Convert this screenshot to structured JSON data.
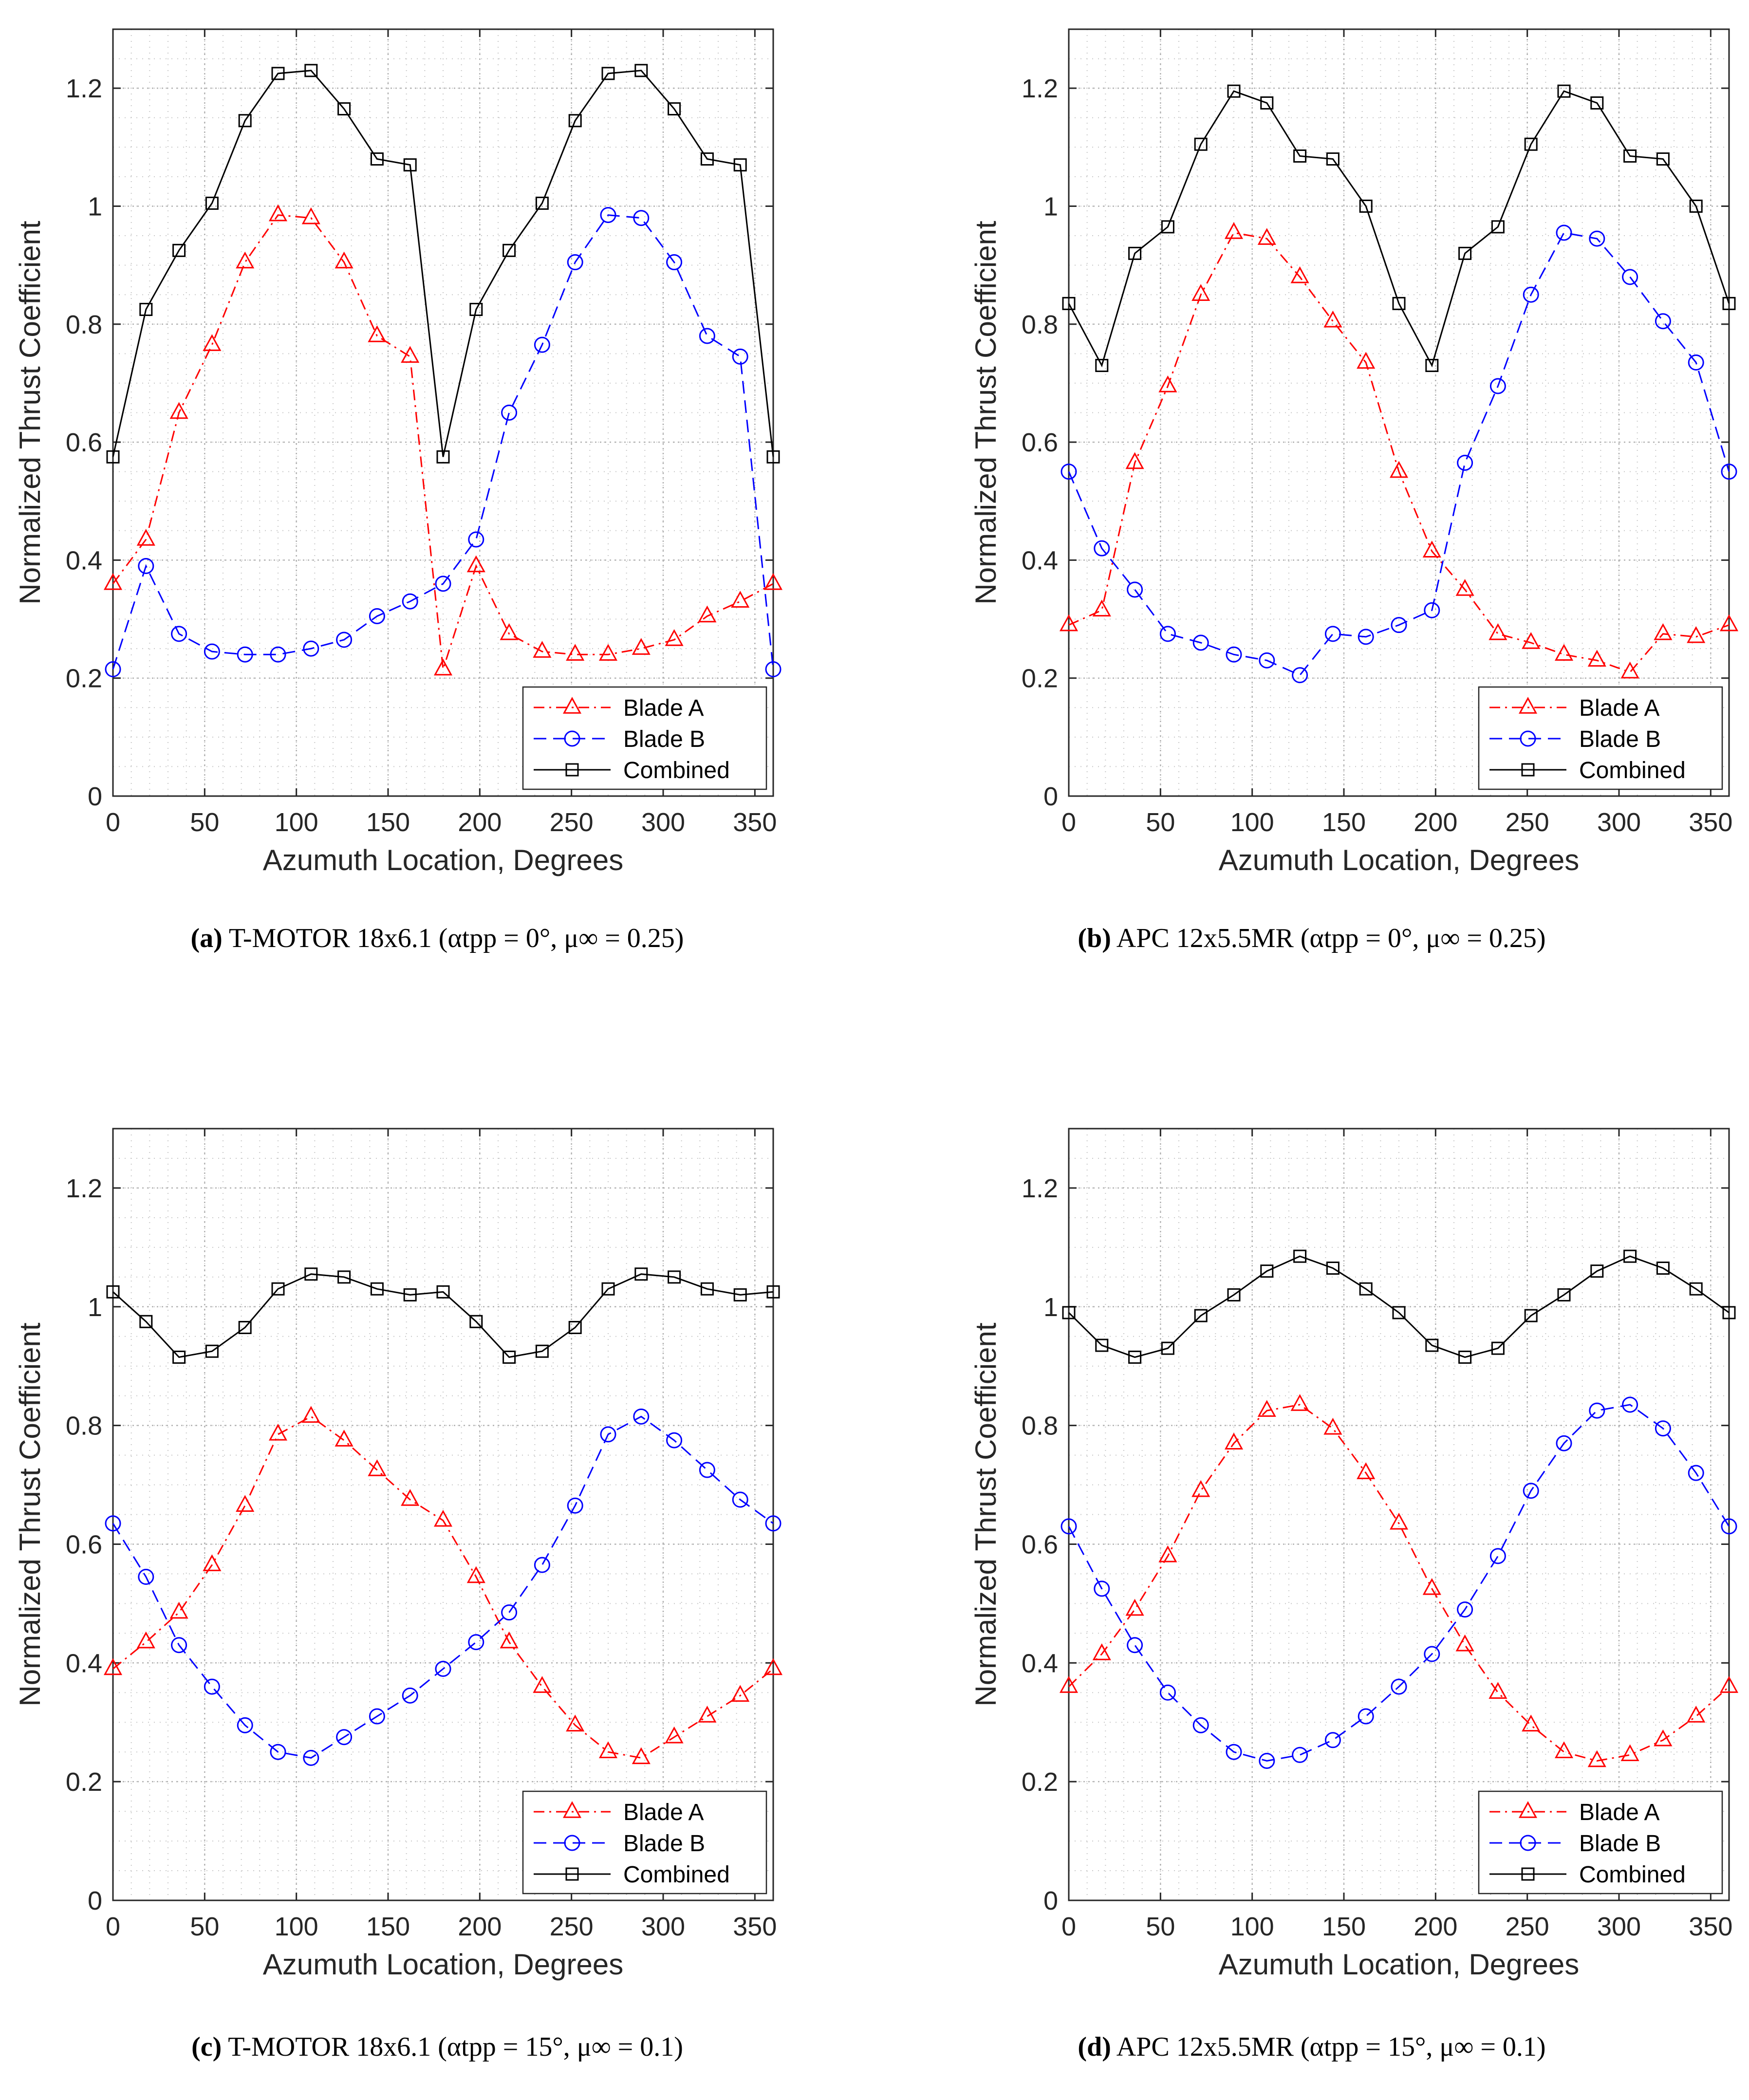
{
  "chart_data": [
    {
      "type": "line",
      "title": "",
      "xlabel": "Azumuth Location, Degrees",
      "ylabel": "Normalized Thrust Coefficient",
      "xlim": [
        0,
        360
      ],
      "ylim": [
        0,
        1.3
      ],
      "xticks": [
        0,
        50,
        100,
        150,
        200,
        250,
        300,
        350
      ],
      "yticks": [
        0,
        0.2,
        0.4,
        0.6,
        0.8,
        1,
        1.2
      ],
      "ytick_labels": [
        "0",
        "0.2",
        "0.4",
        "0.6",
        "0.8",
        "1",
        "1.2"
      ],
      "grid": true,
      "legend": "bottom-right",
      "x": [
        0,
        18,
        36,
        54,
        72,
        90,
        108,
        126,
        144,
        162,
        180,
        198,
        216,
        234,
        252,
        270,
        288,
        306,
        324,
        342,
        360
      ],
      "series": [
        {
          "name": "Blade A",
          "color": "#ff0000",
          "marker": "triangle",
          "dash": "dashdot",
          "values": [
            0.36,
            0.435,
            0.65,
            0.765,
            0.905,
            0.985,
            0.98,
            0.905,
            0.78,
            0.745,
            0.215,
            0.39,
            0.275,
            0.245,
            0.24,
            0.24,
            0.25,
            0.265,
            0.305,
            0.33,
            0.36
          ]
        },
        {
          "name": "Blade B",
          "color": "#0000ff",
          "marker": "circle",
          "dash": "dashed",
          "values": [
            0.215,
            0.39,
            0.275,
            0.245,
            0.24,
            0.24,
            0.25,
            0.265,
            0.305,
            0.33,
            0.36,
            0.435,
            0.65,
            0.765,
            0.905,
            0.985,
            0.98,
            0.905,
            0.78,
            0.745,
            0.215
          ]
        },
        {
          "name": "Combined",
          "color": "#000000",
          "marker": "square",
          "dash": "solid",
          "values": [
            0.575,
            0.825,
            0.925,
            1.005,
            1.145,
            1.225,
            1.23,
            1.165,
            1.08,
            1.07,
            0.575,
            0.825,
            0.925,
            1.005,
            1.145,
            1.225,
            1.23,
            1.165,
            1.08,
            1.07,
            0.575
          ]
        }
      ],
      "caption_label": "(a)",
      "caption_text": "T-MOTOR 18x6.1 (αtpp = 0°, μ∞ = 0.25)"
    },
    {
      "type": "line",
      "title": "",
      "xlabel": "Azumuth Location, Degrees",
      "ylabel": "Normalized Thrust Coefficient",
      "xlim": [
        0,
        360
      ],
      "ylim": [
        0,
        1.3
      ],
      "xticks": [
        0,
        50,
        100,
        150,
        200,
        250,
        300,
        350
      ],
      "yticks": [
        0,
        0.2,
        0.4,
        0.6,
        0.8,
        1,
        1.2
      ],
      "ytick_labels": [
        "0",
        "0.2",
        "0.4",
        "0.6",
        "0.8",
        "1",
        "1.2"
      ],
      "grid": true,
      "legend": "bottom-right",
      "x": [
        0,
        18,
        36,
        54,
        72,
        90,
        108,
        126,
        144,
        162,
        180,
        198,
        216,
        234,
        252,
        270,
        288,
        306,
        324,
        342,
        360
      ],
      "series": [
        {
          "name": "Blade A",
          "color": "#ff0000",
          "marker": "triangle",
          "dash": "dashdot",
          "values": [
            0.29,
            0.315,
            0.565,
            0.695,
            0.85,
            0.955,
            0.945,
            0.88,
            0.805,
            0.735,
            0.55,
            0.415,
            0.35,
            0.275,
            0.26,
            0.24,
            0.23,
            0.21,
            0.275,
            0.27,
            0.29
          ]
        },
        {
          "name": "Blade B",
          "color": "#0000ff",
          "marker": "circle",
          "dash": "dashed",
          "values": [
            0.55,
            0.42,
            0.35,
            0.275,
            0.26,
            0.24,
            0.23,
            0.205,
            0.275,
            0.27,
            0.29,
            0.315,
            0.565,
            0.695,
            0.85,
            0.955,
            0.945,
            0.88,
            0.805,
            0.735,
            0.55
          ]
        },
        {
          "name": "Combined",
          "color": "#000000",
          "marker": "square",
          "dash": "solid",
          "values": [
            0.835,
            0.73,
            0.92,
            0.965,
            1.105,
            1.195,
            1.175,
            1.085,
            1.08,
            1.0,
            0.835,
            0.73,
            0.92,
            0.965,
            1.105,
            1.195,
            1.175,
            1.085,
            1.08,
            1.0,
            0.835
          ]
        }
      ],
      "caption_label": "(b)",
      "caption_text": "APC 12x5.5MR (αtpp = 0°, μ∞ = 0.25)"
    },
    {
      "type": "line",
      "title": "",
      "xlabel": "Azumuth Location, Degrees",
      "ylabel": "Normalized Thrust Coefficient",
      "xlim": [
        0,
        360
      ],
      "ylim": [
        0,
        1.3
      ],
      "xticks": [
        0,
        50,
        100,
        150,
        200,
        250,
        300,
        350
      ],
      "yticks": [
        0,
        0.2,
        0.4,
        0.6,
        0.8,
        1,
        1.2
      ],
      "ytick_labels": [
        "0",
        "0.2",
        "0.4",
        "0.6",
        "0.8",
        "1",
        "1.2"
      ],
      "grid": true,
      "legend": "bottom-right",
      "x": [
        0,
        18,
        36,
        54,
        72,
        90,
        108,
        126,
        144,
        162,
        180,
        198,
        216,
        234,
        252,
        270,
        288,
        306,
        324,
        342,
        360
      ],
      "series": [
        {
          "name": "Blade A",
          "color": "#ff0000",
          "marker": "triangle",
          "dash": "dashdot",
          "values": [
            0.39,
            0.435,
            0.485,
            0.565,
            0.665,
            0.785,
            0.815,
            0.775,
            0.725,
            0.675,
            0.64,
            0.545,
            0.435,
            0.36,
            0.295,
            0.25,
            0.24,
            0.275,
            0.31,
            0.345,
            0.39
          ]
        },
        {
          "name": "Blade B",
          "color": "#0000ff",
          "marker": "circle",
          "dash": "dashed",
          "values": [
            0.635,
            0.545,
            0.43,
            0.36,
            0.295,
            0.25,
            0.24,
            0.275,
            0.31,
            0.345,
            0.39,
            0.435,
            0.485,
            0.565,
            0.665,
            0.785,
            0.815,
            0.775,
            0.725,
            0.675,
            0.635
          ]
        },
        {
          "name": "Combined",
          "color": "#000000",
          "marker": "square",
          "dash": "solid",
          "values": [
            1.025,
            0.975,
            0.915,
            0.925,
            0.965,
            1.03,
            1.055,
            1.05,
            1.03,
            1.02,
            1.025,
            0.975,
            0.915,
            0.925,
            0.965,
            1.03,
            1.055,
            1.05,
            1.03,
            1.02,
            1.025
          ]
        }
      ],
      "caption_label": "(c)",
      "caption_text": "T-MOTOR 18x6.1 (αtpp = 15°, μ∞ = 0.1)"
    },
    {
      "type": "line",
      "title": "",
      "xlabel": "Azumuth Location, Degrees",
      "ylabel": "Normalized Thrust Coefficient",
      "xlim": [
        0,
        360
      ],
      "ylim": [
        0,
        1.3
      ],
      "xticks": [
        0,
        50,
        100,
        150,
        200,
        250,
        300,
        350
      ],
      "yticks": [
        0,
        0.2,
        0.4,
        0.6,
        0.8,
        1,
        1.2
      ],
      "ytick_labels": [
        "0",
        "0.2",
        "0.4",
        "0.6",
        "0.8",
        "1",
        "1.2"
      ],
      "grid": true,
      "legend": "bottom-right",
      "x": [
        0,
        18,
        36,
        54,
        72,
        90,
        108,
        126,
        144,
        162,
        180,
        198,
        216,
        234,
        252,
        270,
        288,
        306,
        324,
        342,
        360
      ],
      "series": [
        {
          "name": "Blade A",
          "color": "#ff0000",
          "marker": "triangle",
          "dash": "dashdot",
          "values": [
            0.36,
            0.415,
            0.49,
            0.58,
            0.69,
            0.77,
            0.825,
            0.835,
            0.795,
            0.72,
            0.635,
            0.525,
            0.43,
            0.35,
            0.295,
            0.25,
            0.235,
            0.245,
            0.27,
            0.31,
            0.36
          ]
        },
        {
          "name": "Blade B",
          "color": "#0000ff",
          "marker": "circle",
          "dash": "dashed",
          "values": [
            0.63,
            0.525,
            0.43,
            0.35,
            0.295,
            0.25,
            0.235,
            0.245,
            0.27,
            0.31,
            0.36,
            0.415,
            0.49,
            0.58,
            0.69,
            0.77,
            0.825,
            0.835,
            0.795,
            0.72,
            0.63
          ]
        },
        {
          "name": "Combined",
          "color": "#000000",
          "marker": "square",
          "dash": "solid",
          "values": [
            0.99,
            0.935,
            0.915,
            0.93,
            0.985,
            1.02,
            1.06,
            1.085,
            1.065,
            1.03,
            0.99,
            0.935,
            0.915,
            0.93,
            0.985,
            1.02,
            1.06,
            1.085,
            1.065,
            1.03,
            0.99
          ]
        }
      ],
      "caption_label": "(d)",
      "caption_text": "APC 12x5.5MR (αtpp = 15°, μ∞ = 0.1)"
    }
  ]
}
